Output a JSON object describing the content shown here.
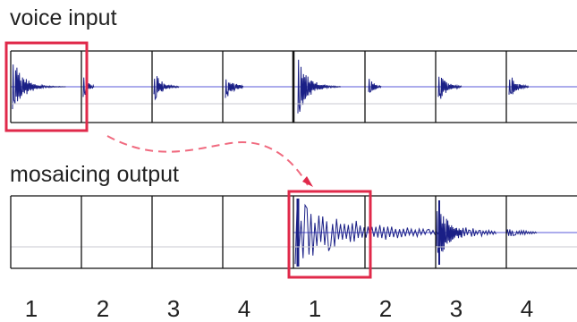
{
  "labels": {
    "voice_input": "voice input",
    "mosaicing_output": "mosaicing output"
  },
  "numbers": [
    "1",
    "2",
    "3",
    "4",
    "1",
    "2",
    "3",
    "4"
  ],
  "colors": {
    "waveform": "#1a1f86",
    "baseline": "#5a5ad8",
    "highlight": "#e0294a",
    "arrow": "#f06a7f",
    "grid": "#111111",
    "faint": "#c8c8d0"
  }
}
